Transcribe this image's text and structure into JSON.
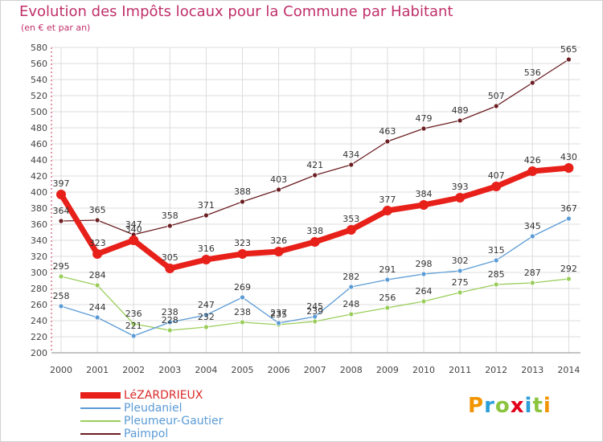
{
  "header": {
    "title": "Evolution des Impôts locaux pour la Commune par Habitant",
    "subtitle": "(en € et par an)"
  },
  "logo": {
    "text": "Proxiti",
    "colors": [
      "#f29400",
      "#2d9fd8",
      "#8bc53f",
      "#e2001a",
      "#2d9fd8",
      "#8bc53f",
      "#f29400"
    ]
  },
  "chart_data": {
    "type": "line",
    "title": "Evolution des Impôts locaux pour la Commune par Habitant",
    "ylabel": "(en € et par an)",
    "xlabel": "",
    "ylim": [
      200,
      580
    ],
    "yticks": [
      200,
      220,
      240,
      260,
      280,
      300,
      320,
      340,
      360,
      380,
      400,
      420,
      440,
      460,
      480,
      500,
      520,
      540,
      560,
      580
    ],
    "x": [
      "2000",
      "2001",
      "2002",
      "2003",
      "2004",
      "2005",
      "2006",
      "2007",
      "2008",
      "2009",
      "2010",
      "2011",
      "2012",
      "2013",
      "2014"
    ],
    "grid": true,
    "legend_position": "bottom-left",
    "series": [
      {
        "name": "LéZARDRIEUX",
        "color": "#e8201a",
        "values": [
          397,
          323,
          340,
          305,
          316,
          323,
          326,
          338,
          353,
          377,
          384,
          393,
          407,
          426,
          430
        ]
      },
      {
        "name": "Pleudaniel",
        "color": "#5b9bd5",
        "values": [
          258,
          244,
          221,
          238,
          247,
          269,
          237,
          245,
          282,
          291,
          298,
          302,
          315,
          345,
          367
        ]
      },
      {
        "name": "Pleumeur-Gautier",
        "color": "#9acd5a",
        "values": [
          295,
          284,
          236,
          228,
          232,
          238,
          235,
          239,
          248,
          256,
          264,
          275,
          285,
          287,
          292
        ]
      },
      {
        "name": "Paimpol",
        "color": "#6b1e22",
        "values": [
          364,
          365,
          347,
          358,
          371,
          388,
          403,
          421,
          434,
          463,
          479,
          489,
          507,
          536,
          565
        ]
      }
    ]
  }
}
